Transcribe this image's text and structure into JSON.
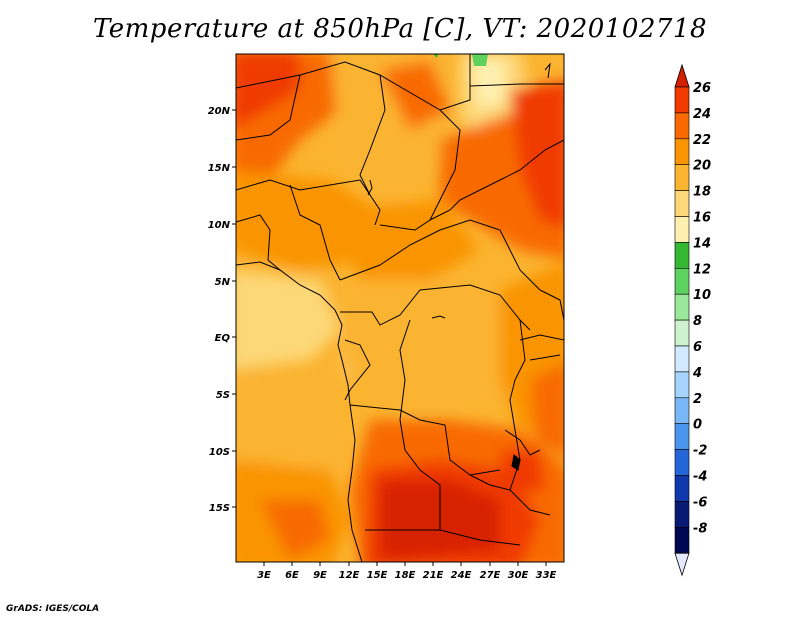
{
  "title": "Temperature at 850hPa [C], VT: 2020102718",
  "footer": "GrADS: IGES/COLA",
  "map": {
    "lon_labels": [
      "3E",
      "6E",
      "9E",
      "12E",
      "15E",
      "18E",
      "21E",
      "24E",
      "27E",
      "30E",
      "33E"
    ],
    "lat_labels": [
      "20N",
      "15N",
      "10N",
      "5N",
      "EQ",
      "5S",
      "10S",
      "15S"
    ]
  },
  "colorbar": {
    "labels": [
      "26",
      "24",
      "22",
      "20",
      "18",
      "16",
      "14",
      "12",
      "10",
      "8",
      "6",
      "4",
      "2",
      "0",
      "-2",
      "-4",
      "-6",
      "-8"
    ],
    "colors": [
      "#d72000",
      "#f03a00",
      "#f86a00",
      "#fa9400",
      "#fbb430",
      "#fdd878",
      "#fff0b0",
      "#34b834",
      "#5ed25e",
      "#9ae89a",
      "#cdf2cd",
      "#d2eaff",
      "#a6d4fc",
      "#78b8f6",
      "#4a96ee",
      "#2466d8",
      "#0e38ac",
      "#081a74",
      "#000854"
    ],
    "top_arrow_color": "#d72000",
    "bottom_arrow_color": "#e6e8ff"
  }
}
